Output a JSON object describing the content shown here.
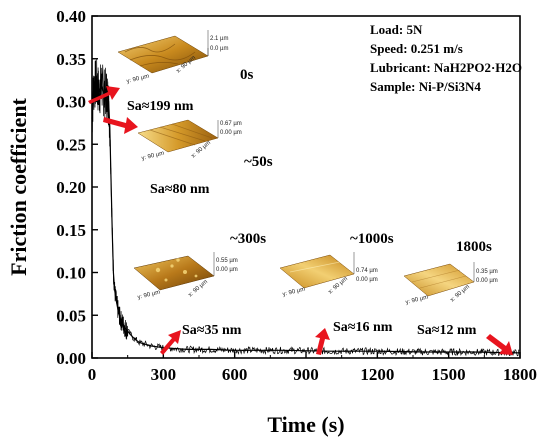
{
  "chart_data": {
    "type": "line",
    "title": "",
    "xlabel": "Time (s)",
    "ylabel": "Friction coefficient",
    "xlim": [
      0,
      1800
    ],
    "ylim": [
      0,
      0.4
    ],
    "xticks": [
      "0",
      "300",
      "600",
      "900",
      "1200",
      "1500",
      "1800"
    ],
    "yticks": [
      "0.00",
      "0.05",
      "0.10",
      "0.15",
      "0.20",
      "0.25",
      "0.30",
      "0.35",
      "0.40"
    ],
    "grid": false,
    "series": [
      {
        "color": "#000000",
        "x": [
          0,
          5,
          10,
          20,
          30,
          40,
          50,
          60,
          70,
          75,
          80,
          85,
          90,
          95,
          100,
          110,
          120,
          140,
          160,
          180,
          200,
          250,
          300,
          400,
          500,
          600,
          800,
          1000,
          1200,
          1400,
          1600,
          1800
        ],
        "y": [
          0.28,
          0.31,
          0.32,
          0.32,
          0.31,
          0.32,
          0.31,
          0.31,
          0.3,
          0.27,
          0.21,
          0.15,
          0.1,
          0.08,
          0.07,
          0.055,
          0.045,
          0.035,
          0.028,
          0.022,
          0.018,
          0.014,
          0.012,
          0.01,
          0.01,
          0.009,
          0.009,
          0.008,
          0.008,
          0.007,
          0.007,
          0.006
        ]
      }
    ],
    "info_box": [
      "Load: 5N",
      "Speed: 0.251 m/s",
      "Lubricant: NaH2PO2·H2O",
      "Sample: Ni-P/Si3N4"
    ],
    "annotations": [
      {
        "time": "0s",
        "sa": "Sa≈199 nm",
        "at_x": 0,
        "at_y": 0.3,
        "afm": {
          "z_max": "2.1 µm",
          "z_min": "0.0 µm",
          "y_axis": "y: 90 µm",
          "x_axis": "x: 90 µm",
          "tint": "#c98a1e"
        }
      },
      {
        "time": "~50s",
        "sa": "Sa≈80 nm",
        "at_x": 50,
        "at_y": 0.32,
        "afm": {
          "z_max": "0.67 µm",
          "z_min": "0.00 µm",
          "y_axis": "y: 90 µm",
          "x_axis": "x: 90 µm",
          "tint": "#d59a2a"
        }
      },
      {
        "time": "~300s",
        "sa": "Sa≈35 nm",
        "at_x": 300,
        "at_y": 0.012,
        "afm": {
          "z_max": "0.55 µm",
          "z_min": "0.00 µm",
          "y_axis": "y: 90 µm",
          "x_axis": "x: 90 µm",
          "tint": "#b8791a"
        }
      },
      {
        "time": "~1000s",
        "sa": "Sa≈16 nm",
        "at_x": 1000,
        "at_y": 0.008,
        "afm": {
          "z_max": "0.74 µm",
          "z_min": "0.00 µm",
          "y_axis": "y: 90 µm",
          "x_axis": "x: 90 µm",
          "tint": "#d8a035"
        }
      },
      {
        "time": "1800s",
        "sa": "Sa≈12 nm",
        "at_x": 1780,
        "at_y": 0.006,
        "afm": {
          "z_max": "0.35 µm",
          "z_min": "0.00 µm",
          "y_axis": "y: 90 µm",
          "x_axis": "x: 90 µm",
          "tint": "#dca83a"
        }
      }
    ],
    "arrow_color": "#e8141e"
  }
}
